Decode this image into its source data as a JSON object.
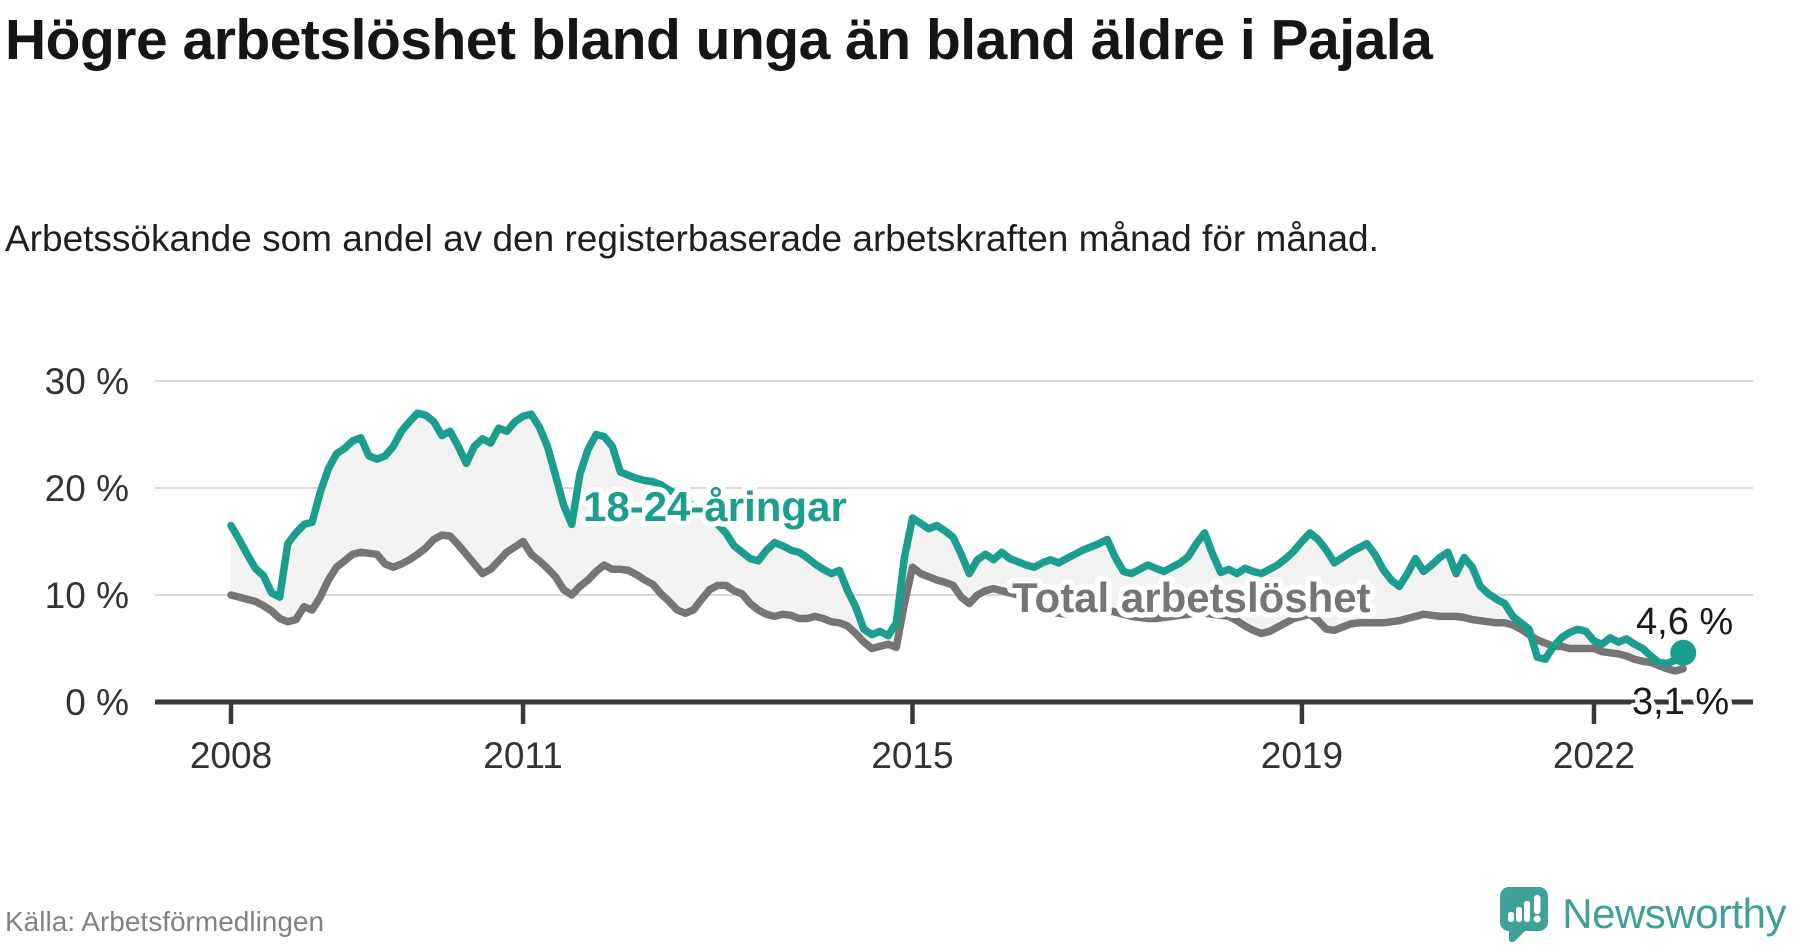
{
  "header": {
    "title": "Högre arbetslöshet bland unga än bland äldre i Pajala",
    "subtitle": "Arbetssökande som andel av den registerbaserade arbetskraften månad för månad."
  },
  "footer": {
    "source": "Källa: Arbetsförmedlingen",
    "brand_name": "Newsworthy",
    "brand_color": "#3f9f99"
  },
  "chart_data": {
    "type": "line",
    "title": "Högre arbetslöshet bland unga än bland äldre i Pajala",
    "x_monthly_from": "2008-01",
    "x_monthly_to": "2022-12",
    "grid": true,
    "ylim": [
      0,
      32
    ],
    "unit": "%",
    "colors": {
      "youth": "#1b9e8e",
      "total": "#757575",
      "band_fill": "#f2f2f2",
      "gridline": "#d9d9d9",
      "axis": "#383838",
      "tick_text": "#333333",
      "end_label_text": "#1a1a1a"
    },
    "x_ticks": [
      {
        "label": "2008",
        "month_index": 0
      },
      {
        "label": "2011",
        "month_index": 36
      },
      {
        "label": "2015",
        "month_index": 84
      },
      {
        "label": "2019",
        "month_index": 132
      },
      {
        "label": "2022",
        "month_index": 168
      }
    ],
    "y_ticks": [
      {
        "label": "0 %",
        "value": 0
      },
      {
        "label": "10 %",
        "value": 10
      },
      {
        "label": "20 %",
        "value": 20
      },
      {
        "label": "30 %",
        "value": 30
      }
    ],
    "series": [
      {
        "id": "youth",
        "name": "18-24-åringar",
        "inline_label": "18-24-åringar",
        "end_label": "4,6 %",
        "end_value": 4.6,
        "color": "#1b9e8e",
        "values": [
          16.5,
          15.2,
          13.8,
          12.5,
          11.8,
          10.2,
          9.8,
          14.8,
          15.8,
          16.6,
          16.8,
          19.6,
          21.8,
          23.2,
          23.7,
          24.4,
          24.7,
          23.0,
          22.7,
          23.0,
          23.9,
          25.3,
          26.2,
          27.0,
          26.8,
          26.2,
          24.9,
          25.3,
          23.9,
          22.3,
          23.9,
          24.6,
          24.2,
          25.6,
          25.3,
          26.2,
          26.7,
          26.9,
          25.7,
          23.9,
          21.2,
          18.4,
          16.6,
          21.3,
          23.6,
          25.0,
          24.8,
          23.9,
          21.5,
          21.2,
          20.9,
          20.7,
          20.6,
          20.3,
          19.8,
          19.4,
          18.9,
          18.3,
          17.7,
          17.1,
          16.6,
          15.8,
          14.6,
          14.0,
          13.4,
          13.2,
          14.2,
          14.9,
          14.6,
          14.2,
          14.0,
          13.5,
          12.9,
          12.4,
          12.0,
          12.3,
          10.4,
          8.9,
          6.8,
          6.3,
          6.6,
          6.2,
          7.4,
          13.5,
          17.2,
          16.7,
          16.2,
          16.5,
          16.0,
          15.4,
          13.8,
          12.0,
          13.3,
          13.8,
          13.3,
          14.0,
          13.4,
          13.1,
          12.8,
          12.6,
          13.0,
          13.3,
          13.0,
          13.4,
          13.8,
          14.2,
          14.5,
          14.8,
          15.2,
          13.5,
          12.2,
          12.0,
          12.4,
          12.8,
          12.5,
          12.2,
          12.6,
          13.0,
          13.6,
          14.8,
          15.8,
          13.8,
          12.1,
          12.4,
          12.0,
          12.5,
          12.2,
          12.0,
          12.4,
          12.8,
          13.4,
          14.1,
          15.0,
          15.8,
          15.2,
          14.2,
          13.0,
          13.5,
          14.0,
          14.4,
          14.8,
          13.8,
          12.4,
          11.4,
          10.8,
          12.0,
          13.4,
          12.2,
          12.8,
          13.5,
          14.0,
          12.0,
          13.5,
          12.6,
          10.8,
          10.1,
          9.6,
          9.2,
          8.0,
          7.4,
          6.8,
          4.2,
          4.0,
          5.2,
          6.0,
          6.5,
          6.8,
          6.6,
          5.7,
          5.4,
          6.0,
          5.6,
          5.9,
          5.4,
          5.0,
          4.3,
          3.7,
          3.6,
          3.9,
          4.6
        ]
      },
      {
        "id": "total",
        "name": "Total arbetslöshet",
        "inline_label": "Total arbetslöshet",
        "end_label": "3,1 %",
        "end_value": 3.1,
        "color": "#757575",
        "values": [
          10.0,
          9.8,
          9.6,
          9.4,
          9.0,
          8.5,
          7.8,
          7.5,
          7.7,
          8.9,
          8.6,
          9.8,
          11.4,
          12.6,
          13.2,
          13.8,
          14.0,
          13.9,
          13.8,
          12.9,
          12.6,
          12.9,
          13.3,
          13.8,
          14.4,
          15.2,
          15.6,
          15.5,
          14.7,
          13.8,
          12.9,
          12.0,
          12.4,
          13.2,
          14.0,
          14.5,
          15.0,
          13.8,
          13.2,
          12.5,
          11.7,
          10.5,
          10.0,
          10.8,
          11.4,
          12.2,
          12.8,
          12.4,
          12.4,
          12.3,
          11.9,
          11.4,
          11.0,
          10.1,
          9.4,
          8.6,
          8.3,
          8.6,
          9.6,
          10.5,
          10.9,
          10.9,
          10.4,
          10.1,
          9.2,
          8.6,
          8.2,
          8.0,
          8.2,
          8.1,
          7.8,
          7.8,
          8.0,
          7.8,
          7.5,
          7.4,
          7.1,
          6.4,
          5.6,
          5.0,
          5.2,
          5.4,
          5.1,
          9.2,
          12.6,
          12.0,
          11.7,
          11.4,
          11.2,
          10.9,
          9.8,
          9.2,
          10.0,
          10.4,
          10.6,
          10.4,
          10.2,
          10.0,
          9.6,
          8.8,
          8.6,
          8.4,
          8.3,
          8.2,
          8.3,
          8.4,
          8.5,
          8.6,
          8.6,
          8.4,
          8.2,
          8.0,
          7.9,
          7.8,
          7.8,
          7.9,
          8.0,
          8.1,
          8.2,
          8.3,
          8.3,
          8.2,
          8.1,
          8.0,
          7.6,
          7.1,
          6.7,
          6.4,
          6.6,
          7.0,
          7.4,
          7.8,
          8.0,
          8.2,
          7.6,
          6.8,
          6.7,
          7.0,
          7.3,
          7.4,
          7.4,
          7.4,
          7.4,
          7.5,
          7.6,
          7.8,
          8.0,
          8.2,
          8.1,
          8.0,
          8.0,
          8.0,
          7.9,
          7.7,
          7.6,
          7.5,
          7.4,
          7.4,
          7.2,
          6.8,
          6.3,
          5.8,
          5.5,
          5.2,
          5.2,
          5.0,
          5.0,
          5.0,
          5.0,
          4.7,
          4.6,
          4.5,
          4.3,
          4.0,
          3.8,
          3.7,
          3.4,
          3.1,
          2.9,
          3.1
        ]
      }
    ]
  }
}
